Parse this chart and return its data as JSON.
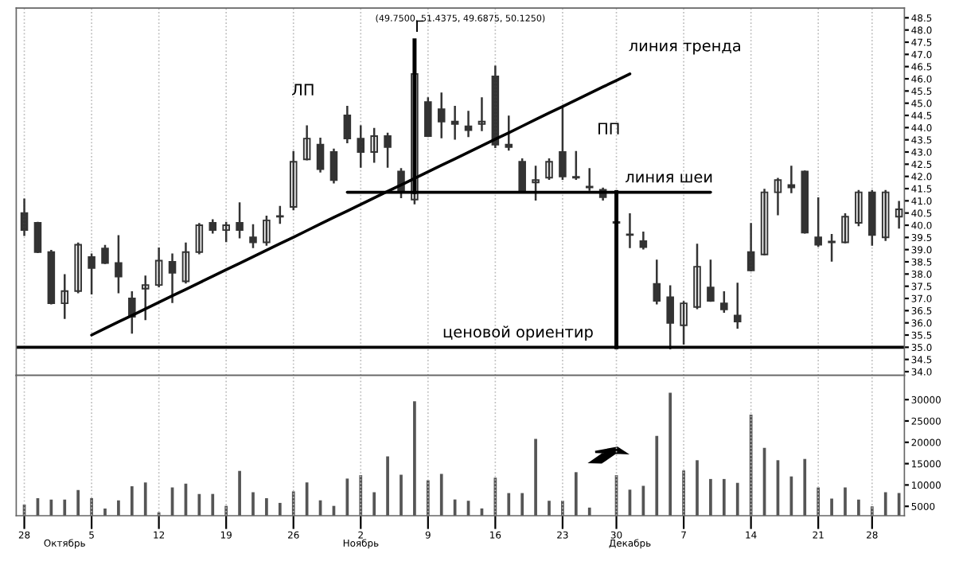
{
  "chart_data": [
    {
      "type": "candlestick",
      "title": "(49.7500, 51.4375, 49.6875, 50.1250)",
      "categories": [
        "28",
        null,
        null,
        null,
        null,
        "5",
        null,
        null,
        null,
        null,
        "12",
        null,
        null,
        null,
        null,
        "19",
        null,
        null,
        null,
        null,
        "26",
        null,
        null,
        null,
        null,
        "2",
        null,
        null,
        null,
        null,
        "9",
        null,
        null,
        null,
        null,
        "16",
        null,
        null,
        null,
        null,
        "23",
        null,
        null,
        null,
        "30",
        null,
        null,
        null,
        null,
        "7",
        null,
        null,
        null,
        null,
        "14",
        null,
        null,
        null,
        null,
        "21",
        null,
        null,
        null,
        "28",
        null,
        null
      ],
      "series": [
        {
          "type": "candlestick",
          "color": "#333333",
          "ohlc": [
            [
              40.5,
              41.05,
              39.6,
              39.8
            ],
            [
              40.1,
              40.1,
              38.9,
              38.9
            ],
            [
              38.9,
              38.95,
              36.8,
              36.8
            ],
            [
              36.8,
              37.95,
              36.2,
              37.3
            ],
            [
              37.3,
              39.25,
              37.25,
              39.2
            ],
            [
              38.7,
              38.8,
              37.2,
              38.25
            ],
            [
              39.05,
              39.15,
              38.45,
              38.45
            ],
            [
              38.45,
              39.55,
              37.25,
              37.9
            ],
            [
              37.0,
              37.25,
              35.6,
              36.25
            ],
            [
              37.4,
              37.9,
              36.15,
              37.55
            ],
            [
              37.55,
              39.05,
              37.5,
              38.55
            ],
            [
              38.5,
              38.8,
              36.85,
              38.05
            ],
            [
              37.7,
              39.25,
              37.65,
              38.9
            ],
            [
              38.9,
              40.05,
              38.85,
              40.0
            ],
            [
              40.1,
              40.2,
              39.7,
              39.8
            ],
            [
              39.8,
              40.1,
              39.35,
              40.0
            ],
            [
              40.1,
              40.9,
              39.5,
              39.8
            ],
            [
              39.5,
              40.0,
              39.1,
              39.3
            ],
            [
              39.3,
              40.35,
              39.2,
              40.2
            ],
            [
              40.35,
              40.75,
              40.1,
              40.35
            ],
            [
              40.75,
              43.0,
              40.65,
              42.6
            ],
            [
              42.7,
              44.05,
              42.7,
              43.55
            ],
            [
              43.3,
              43.55,
              42.2,
              42.3
            ],
            [
              43.0,
              43.1,
              41.75,
              41.85
            ],
            [
              44.5,
              44.85,
              43.4,
              43.55
            ],
            [
              43.55,
              44.05,
              42.4,
              43.0
            ],
            [
              43.0,
              43.95,
              42.6,
              43.65
            ],
            [
              43.65,
              43.75,
              42.4,
              43.2
            ],
            [
              42.2,
              42.3,
              41.15,
              41.35
            ],
            [
              41.05,
              46.4,
              40.9,
              46.2
            ],
            [
              45.05,
              45.2,
              43.65,
              43.65
            ],
            [
              44.75,
              45.4,
              43.6,
              44.25
            ],
            [
              44.25,
              44.85,
              43.55,
              44.15
            ],
            [
              44.05,
              44.65,
              43.65,
              43.9
            ],
            [
              44.15,
              45.2,
              43.9,
              44.25
            ],
            [
              46.1,
              46.5,
              43.2,
              43.3
            ],
            [
              43.3,
              44.45,
              43.1,
              43.2
            ],
            [
              42.6,
              42.7,
              41.35,
              41.4
            ],
            [
              41.75,
              42.4,
              41.05,
              41.85
            ],
            [
              41.95,
              42.7,
              41.9,
              42.6
            ],
            [
              43.0,
              44.85,
              41.9,
              42.0
            ],
            [
              41.95,
              43.0,
              41.9,
              41.95
            ],
            [
              41.55,
              42.3,
              41.45,
              41.55
            ],
            [
              41.45,
              41.5,
              41.05,
              41.15
            ],
            [
              40.1,
              41.4,
              39.9,
              40.1
            ],
            [
              39.6,
              40.45,
              39.1,
              39.6
            ],
            [
              39.35,
              39.7,
              39.05,
              39.1
            ],
            [
              37.6,
              38.55,
              36.8,
              36.9
            ],
            [
              37.05,
              37.5,
              34.95,
              36.0
            ],
            [
              35.9,
              36.85,
              35.15,
              36.8
            ],
            [
              36.65,
              39.2,
              36.6,
              38.3
            ],
            [
              37.45,
              38.55,
              36.9,
              36.9
            ],
            [
              36.8,
              37.25,
              36.45,
              36.55
            ],
            [
              36.3,
              37.6,
              35.8,
              36.05
            ],
            [
              38.9,
              40.05,
              38.15,
              38.15
            ],
            [
              38.8,
              41.45,
              38.8,
              41.35
            ],
            [
              41.35,
              41.9,
              40.45,
              41.85
            ],
            [
              41.65,
              42.4,
              41.35,
              41.55
            ],
            [
              42.2,
              42.2,
              39.7,
              39.7
            ],
            [
              39.5,
              41.1,
              39.15,
              39.2
            ],
            [
              39.3,
              39.6,
              38.55,
              39.3
            ],
            [
              39.3,
              40.45,
              39.3,
              40.35
            ],
            [
              40.1,
              41.4,
              40.0,
              41.35
            ],
            [
              41.35,
              41.4,
              39.2,
              39.6
            ],
            [
              39.5,
              41.4,
              39.4,
              41.35
            ],
            [
              40.35,
              40.95,
              39.9,
              40.65
            ]
          ]
        },
        {
          "type": "line",
          "color": "#000000",
          "values": [
            null,
            null,
            null,
            null,
            null,
            35.5,
            35.77,
            36.04,
            36.3,
            36.57,
            36.84,
            37.11,
            37.37,
            37.64,
            37.91,
            38.18,
            38.44,
            38.71,
            38.98,
            39.25,
            39.51,
            39.78,
            40.05,
            40.32,
            40.58,
            40.85,
            41.12,
            41.39,
            41.65,
            41.92,
            42.19,
            42.46,
            42.72,
            42.99,
            43.26,
            43.53,
            43.79,
            44.06,
            44.33,
            44.6,
            44.86,
            45.13,
            45.4,
            45.67,
            45.93,
            46.2,
            null,
            null,
            null,
            null,
            null,
            null,
            null,
            null,
            null,
            null,
            null,
            null,
            null,
            null,
            null,
            null,
            null,
            null,
            null,
            null
          ]
        },
        {
          "type": "line",
          "color": "#000000",
          "values": [
            null,
            null,
            null,
            null,
            null,
            null,
            null,
            null,
            null,
            null,
            null,
            null,
            null,
            null,
            null,
            null,
            null,
            null,
            null,
            null,
            null,
            null,
            null,
            null,
            41.35,
            41.35,
            41.35,
            41.35,
            41.35,
            41.35,
            41.35,
            41.35,
            41.35,
            41.35,
            41.35,
            41.35,
            41.35,
            41.35,
            41.35,
            41.35,
            41.35,
            41.35,
            41.35,
            41.35,
            41.35,
            41.35,
            41.35,
            41.35,
            41.35,
            41.35,
            41.35,
            41.35,
            null,
            null,
            null,
            null,
            null,
            null,
            null,
            null,
            null,
            null,
            null,
            null,
            null,
            null
          ]
        }
      ],
      "ref_lines": [
        {
          "axis": "y",
          "value": 35.0,
          "color": "#000000"
        }
      ],
      "annotations": [
        "ЛП",
        {
          "text": "Г",
          "y": 46.4
        },
        "линия тренда",
        "ПП",
        {
          "text": "линия шеи",
          "y": 41.35
        },
        {
          "text": "ценовой ориентир",
          "y": 35.0
        }
      ],
      "ylim": [
        33.85,
        48.9
      ],
      "yticks": [
        {
          "value": 34,
          "label": "34.0"
        },
        34.5,
        {
          "value": 35,
          "label": "35.0"
        },
        35.5,
        {
          "value": 36,
          "label": "36.0"
        },
        36.5,
        {
          "value": 37,
          "label": "37.0"
        },
        37.5,
        {
          "value": 38,
          "label": "38.0"
        },
        38.5,
        {
          "value": 39,
          "label": "39.0"
        },
        39.5,
        {
          "value": 40,
          "label": "40.0"
        },
        40.5,
        {
          "value": 41,
          "label": "41.0"
        },
        41.5,
        {
          "value": 42,
          "label": "42.0"
        },
        42.5,
        {
          "value": 43,
          "label": "43.0"
        },
        43.5,
        {
          "value": 44,
          "label": "44.0"
        },
        44.5,
        {
          "value": 45,
          "label": "45.0"
        },
        45.5,
        {
          "value": 46,
          "label": "46.0"
        },
        46.5,
        {
          "value": 47,
          "label": "47.0"
        },
        47.5,
        {
          "value": 48,
          "label": "48.0"
        },
        48.5
      ],
      "tick_labels": "y",
      "grid": "x"
    },
    {
      "type": "bar",
      "color": "#555555",
      "categories": [
        "28",
        null,
        null,
        null,
        null,
        "5",
        null,
        null,
        null,
        null,
        "12",
        null,
        null,
        null,
        null,
        "19",
        null,
        null,
        null,
        null,
        "26",
        null,
        null,
        null,
        null,
        "2",
        null,
        null,
        null,
        null,
        "9",
        null,
        null,
        null,
        null,
        "16",
        null,
        null,
        null,
        null,
        "23",
        null,
        null,
        null,
        "30",
        null,
        null,
        null,
        null,
        "7",
        null,
        null,
        null,
        null,
        "14",
        null,
        null,
        null,
        null,
        "21",
        null,
        null,
        null,
        "28",
        null,
        null
      ],
      "values": [
        5400,
        6900,
        6600,
        6600,
        8800,
        6900,
        4500,
        6400,
        9700,
        10600,
        3600,
        9400,
        10300,
        7900,
        7900,
        5100,
        13300,
        8300,
        6900,
        5800,
        8500,
        10600,
        6400,
        5100,
        11500,
        12300,
        8300,
        16700,
        12400,
        29600,
        11100,
        12600,
        6600,
        6300,
        4500,
        11700,
        8100,
        8100,
        20800,
        6300,
        6300,
        13000,
        4700,
        null,
        12300,
        8900,
        9800,
        21500,
        31600,
        13400,
        15800,
        11400,
        11400,
        10500,
        26500,
        18700,
        15800,
        12000,
        16100,
        9400,
        6800,
        9400,
        6600,
        5000,
        8300,
        8100
      ],
      "annotations": [
        "Октябрь",
        "Ноябрь",
        "Декабрь"
      ],
      "ylim": [
        2800,
        35700
      ],
      "yticks": [
        5000,
        10000,
        15000,
        20000,
        25000,
        30000
      ],
      "grid": "x"
    }
  ]
}
